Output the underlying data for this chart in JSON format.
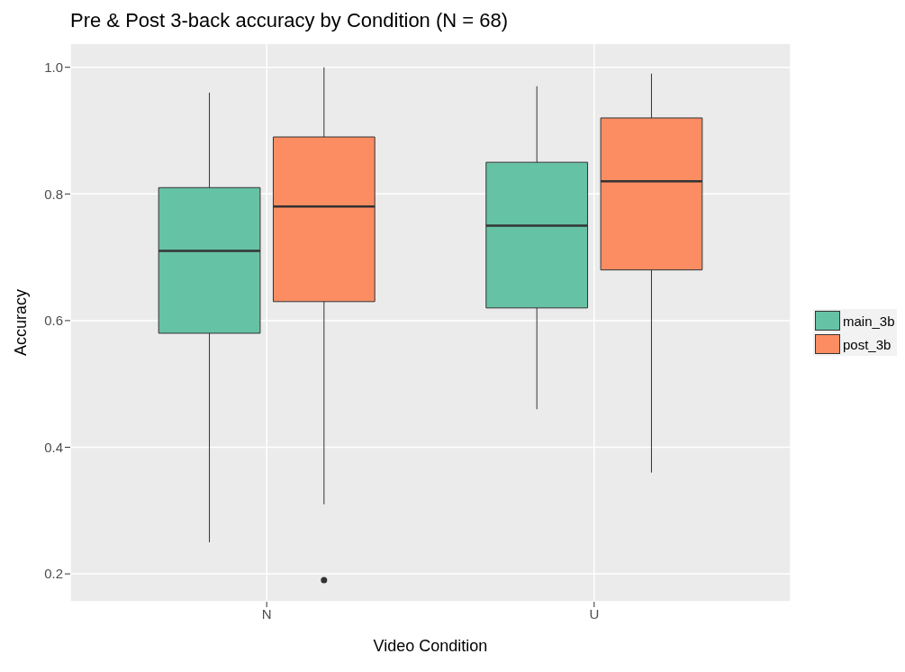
{
  "chart_data": {
    "type": "box",
    "title": "Pre & Post 3-back accuracy by Condition (N = 68)",
    "xlabel": "Video Condition",
    "ylabel": "Accuracy",
    "categories": [
      "N",
      "U"
    ],
    "series": [
      {
        "name": "main_3b",
        "color": "#66c2a5",
        "boxes": [
          {
            "low": 0.25,
            "q1": 0.58,
            "median": 0.71,
            "q3": 0.81,
            "high": 0.96
          },
          {
            "low": 0.46,
            "q1": 0.62,
            "median": 0.75,
            "q3": 0.85,
            "high": 0.97
          }
        ]
      },
      {
        "name": "post_3b",
        "color": "#fc8d62",
        "boxes": [
          {
            "low": 0.31,
            "q1": 0.63,
            "median": 0.78,
            "q3": 0.89,
            "high": 1.0,
            "outliers": [
              0.19
            ]
          },
          {
            "low": 0.36,
            "q1": 0.68,
            "median": 0.82,
            "q3": 0.92,
            "high": 0.99
          }
        ]
      }
    ],
    "ylim": [
      0.156,
      1.038
    ],
    "yticks": [
      0.2,
      0.4,
      0.6,
      0.8,
      {
        "value": 1,
        "label": "1.0"
      }
    ],
    "grid": true,
    "legend": "right"
  }
}
